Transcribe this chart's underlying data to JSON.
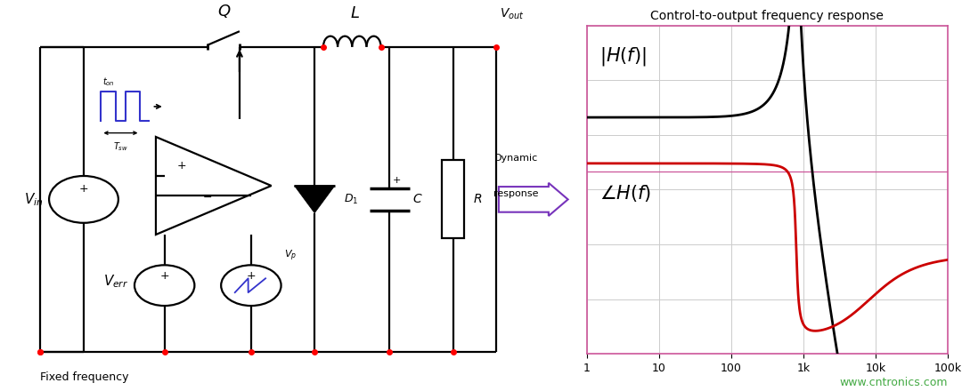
{
  "title": "Control-to-output frequency response",
  "xticks": [
    1,
    10,
    100,
    1000,
    10000,
    100000
  ],
  "xtick_labels": [
    "1",
    "10",
    "100",
    "1k",
    "10k",
    "100k"
  ],
  "border_color": "#cc5599",
  "grid_color": "#cccccc",
  "magnitude_color": "#000000",
  "phase_color": "#cc0000",
  "arrow_color": "#7733bb",
  "circuit_line_color": "#000000",
  "blue_color": "#3333cc",
  "red_dot_color": "#ff0000",
  "watermark": "www.cntronics.com",
  "watermark_color": "#44aa44",
  "figsize": [
    10.8,
    4.4
  ],
  "dpi": 100
}
